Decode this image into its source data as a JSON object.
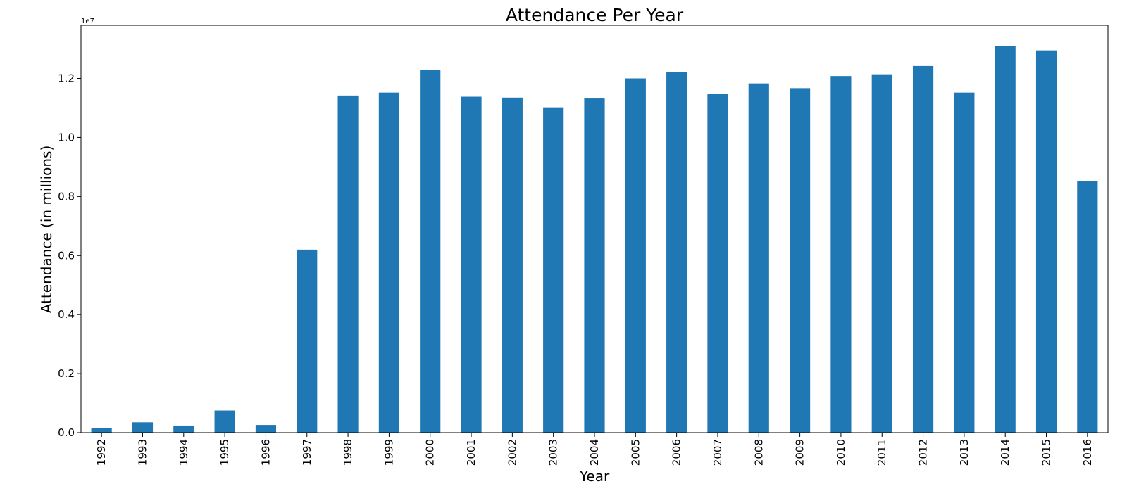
{
  "chart_data": {
    "type": "bar",
    "title": "Attendance Per Year",
    "xlabel": "Year",
    "ylabel": "Attendance (in millions)",
    "y_offset_label": "1e7",
    "ylim": [
      0,
      1.38
    ],
    "y_ticks": [
      "0.0",
      "0.2",
      "0.4",
      "0.6",
      "0.8",
      "1.0",
      "1.2"
    ],
    "y_tick_values": [
      0.0,
      0.2,
      0.4,
      0.6,
      0.8,
      1.0,
      1.2
    ],
    "categories": [
      "1992",
      "1993",
      "1994",
      "1995",
      "1996",
      "1997",
      "1998",
      "1999",
      "2000",
      "2001",
      "2002",
      "2003",
      "2004",
      "2005",
      "2006",
      "2007",
      "2008",
      "2009",
      "2010",
      "2011",
      "2012",
      "2013",
      "2014",
      "2015",
      "2016"
    ],
    "values": [
      0.015,
      0.035,
      0.024,
      0.075,
      0.026,
      0.62,
      1.142,
      1.152,
      1.228,
      1.138,
      1.135,
      1.102,
      1.132,
      1.2,
      1.222,
      1.148,
      1.183,
      1.167,
      1.208,
      1.214,
      1.242,
      1.152,
      1.31,
      1.295,
      0.852
    ],
    "legend": "none",
    "grid": false,
    "bar_color": "#1f77b4"
  }
}
